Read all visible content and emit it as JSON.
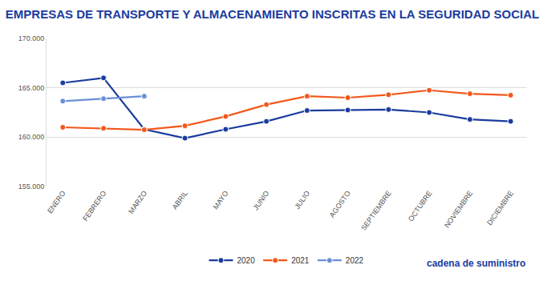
{
  "chart_data": {
    "type": "line",
    "title": "EMPRESAS DE TRANSPORTE Y ALMACENAMIENTO INSCRITAS EN LA SEGURIDAD SOCIAL",
    "source": "cadena de suministro",
    "categories": [
      "ENERO",
      "FEBRERO",
      "MARZO",
      "ABRIL",
      "MAYO",
      "JUNIO",
      "JULIO",
      "AGOSTO",
      "SEPTIEMBRE",
      "OCTUBRE",
      "NOVIEMBRE",
      "DICIEMBRE"
    ],
    "series": [
      {
        "name": "2020",
        "color": "#1b3c9e",
        "values": [
          165500,
          166000,
          160800,
          159900,
          160800,
          161600,
          162700,
          162750,
          162800,
          162500,
          161800,
          161600
        ]
      },
      {
        "name": "2021",
        "color": "#f2581b",
        "values": [
          161000,
          160900,
          160750,
          161150,
          162100,
          163300,
          164150,
          164000,
          164300,
          164750,
          164400,
          164250
        ]
      },
      {
        "name": "2022",
        "color": "#6a8fd8",
        "values": [
          163650,
          163900,
          164150,
          null,
          null,
          null,
          null,
          null,
          null,
          null,
          null,
          null
        ]
      }
    ],
    "ylim": [
      155000,
      170000
    ],
    "yticks": [
      {
        "value": 155000,
        "label": "155.000"
      },
      {
        "value": 160000,
        "label": "160.000"
      },
      {
        "value": 165000,
        "label": "165.000"
      },
      {
        "value": 170000,
        "label": "170.000"
      }
    ],
    "grid": true,
    "legend": "bottom",
    "marker": "circle",
    "line_style": "solid"
  }
}
